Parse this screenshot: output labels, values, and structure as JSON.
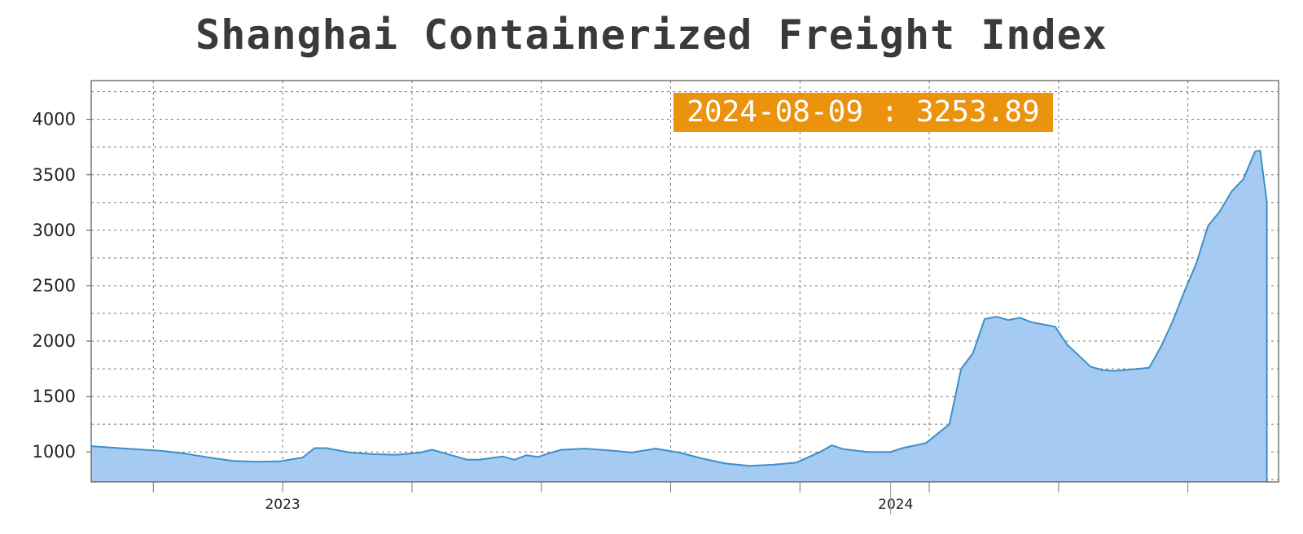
{
  "chart_data": {
    "type": "area",
    "title": "Shanghai Containerized Freight Index",
    "callout": {
      "label": "2024-08-09 : 3253.89",
      "date": "2024-08-09",
      "value": 3253.89
    },
    "ylim": [
      730,
      4350
    ],
    "yticks": [
      1000,
      1500,
      2000,
      2500,
      3000,
      3500,
      4000
    ],
    "xlim": [
      "2022-09-09",
      "2024-08-16"
    ],
    "xticks": [
      {
        "date": "2023-01-01",
        "label": "2023"
      },
      {
        "date": "2024-01-01",
        "label": "2024"
      }
    ],
    "grid": true,
    "fill_color": "#a6cbf3",
    "line_color": "#3d8fc8",
    "callout_color": "#ec930e",
    "series": [
      {
        "values": [
          [
            "2022-09-09",
            1052
          ],
          [
            "2022-09-30",
            1030
          ],
          [
            "2022-10-21",
            1010
          ],
          [
            "2022-11-04",
            985
          ],
          [
            "2022-11-18",
            950
          ],
          [
            "2022-12-02",
            920
          ],
          [
            "2022-12-16",
            912
          ],
          [
            "2022-12-30",
            915
          ],
          [
            "2023-01-13",
            950
          ],
          [
            "2023-01-20",
            1035
          ],
          [
            "2023-01-27",
            1035
          ],
          [
            "2023-02-10",
            995
          ],
          [
            "2023-02-24",
            980
          ],
          [
            "2023-03-10",
            975
          ],
          [
            "2023-03-24",
            995
          ],
          [
            "2023-03-31",
            1020
          ],
          [
            "2023-04-14",
            960
          ],
          [
            "2023-04-21",
            930
          ],
          [
            "2023-04-28",
            930
          ],
          [
            "2023-05-12",
            960
          ],
          [
            "2023-05-19",
            930
          ],
          [
            "2023-05-26",
            970
          ],
          [
            "2023-06-02",
            955
          ],
          [
            "2023-06-09",
            990
          ],
          [
            "2023-06-16",
            1020
          ],
          [
            "2023-06-30",
            1030
          ],
          [
            "2023-07-14",
            1015
          ],
          [
            "2023-07-28",
            995
          ],
          [
            "2023-08-11",
            1030
          ],
          [
            "2023-08-25",
            995
          ],
          [
            "2023-09-08",
            940
          ],
          [
            "2023-09-22",
            895
          ],
          [
            "2023-10-06",
            875
          ],
          [
            "2023-10-20",
            885
          ],
          [
            "2023-11-03",
            905
          ],
          [
            "2023-11-17",
            1000
          ],
          [
            "2023-11-24",
            1060
          ],
          [
            "2023-12-01",
            1025
          ],
          [
            "2023-12-15",
            1000
          ],
          [
            "2023-12-29",
            1000
          ],
          [
            "2024-01-05",
            1035
          ],
          [
            "2024-01-19",
            1080
          ],
          [
            "2024-02-02",
            1250
          ],
          [
            "2024-02-09",
            1750
          ],
          [
            "2024-02-16",
            1890
          ],
          [
            "2024-02-23",
            2200
          ],
          [
            "2024-03-01",
            2220
          ],
          [
            "2024-03-08",
            2190
          ],
          [
            "2024-03-15",
            2210
          ],
          [
            "2024-03-22",
            2170
          ],
          [
            "2024-03-29",
            2150
          ],
          [
            "2024-04-05",
            2130
          ],
          [
            "2024-04-12",
            1970
          ],
          [
            "2024-04-19",
            1870
          ],
          [
            "2024-04-26",
            1770
          ],
          [
            "2024-05-03",
            1740
          ],
          [
            "2024-05-10",
            1730
          ],
          [
            "2024-05-17",
            1740
          ],
          [
            "2024-05-24",
            1750
          ],
          [
            "2024-05-31",
            1760
          ],
          [
            "2024-06-07",
            1950
          ],
          [
            "2024-06-14",
            2180
          ],
          [
            "2024-06-21",
            2450
          ],
          [
            "2024-06-28",
            2700
          ],
          [
            "2024-07-05",
            3040
          ],
          [
            "2024-07-12",
            3170
          ],
          [
            "2024-07-19",
            3350
          ],
          [
            "2024-07-26",
            3460
          ],
          [
            "2024-08-02",
            3710
          ],
          [
            "2024-08-05",
            3720
          ],
          [
            "2024-08-09",
            3253.89
          ]
        ]
      }
    ]
  }
}
